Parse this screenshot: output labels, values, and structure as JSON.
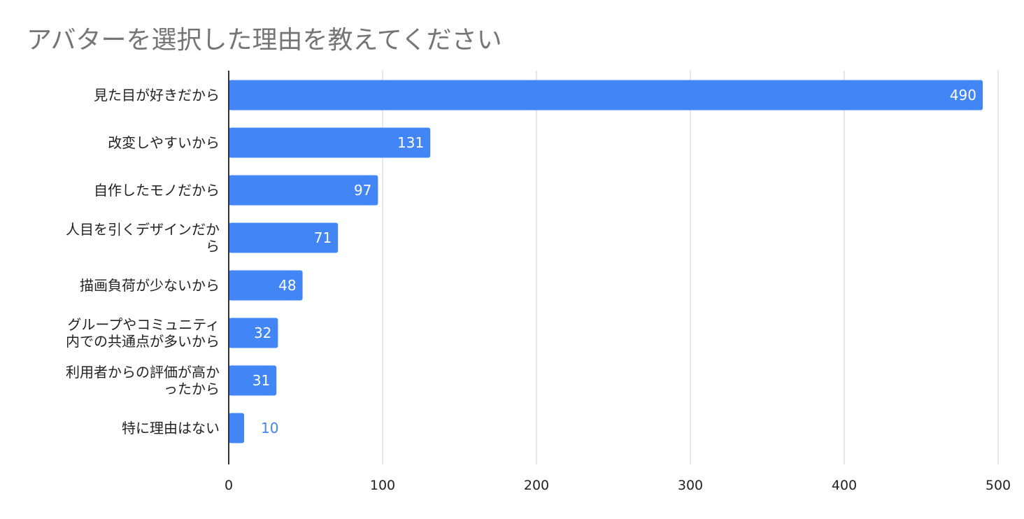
{
  "chart_data": {
    "type": "bar",
    "orientation": "horizontal",
    "title": "アバターを選択した理由を教えてください",
    "categories": [
      "見た目が好きだから",
      "改変しやすいから",
      "自作したモノだから",
      "人目を引くデザインだから",
      "描画負荷が少ないから",
      "グループやコミュニティ内での共通点が多いから",
      "利用者からの評価が高かったから",
      "特に理由はない"
    ],
    "category_label_lines": [
      [
        "見た目が好きだから"
      ],
      [
        "改変しやすいから"
      ],
      [
        "自作したモノだから"
      ],
      [
        "人目を引くデザインだか",
        "ら"
      ],
      [
        "描画負荷が少ないから"
      ],
      [
        "グループやコミュニティ",
        "内での共通点が多いから"
      ],
      [
        "利用者からの評価が高か",
        "ったから"
      ],
      [
        "特に理由はない"
      ]
    ],
    "values": [
      490,
      131,
      97,
      71,
      48,
      32,
      31,
      10
    ],
    "xlim": [
      0,
      500
    ],
    "xticks": [
      0,
      100,
      200,
      300,
      400,
      500
    ],
    "xlabel": "",
    "ylabel": "",
    "grid": true,
    "data_labels": true,
    "legend": "none",
    "colors": {
      "bar": "#4285f4",
      "label_inside": "#ffffff",
      "label_outside": "#4285f4",
      "grid": "#cccccc",
      "axis": "#333333",
      "text": "#222222",
      "title": "#757575"
    }
  }
}
